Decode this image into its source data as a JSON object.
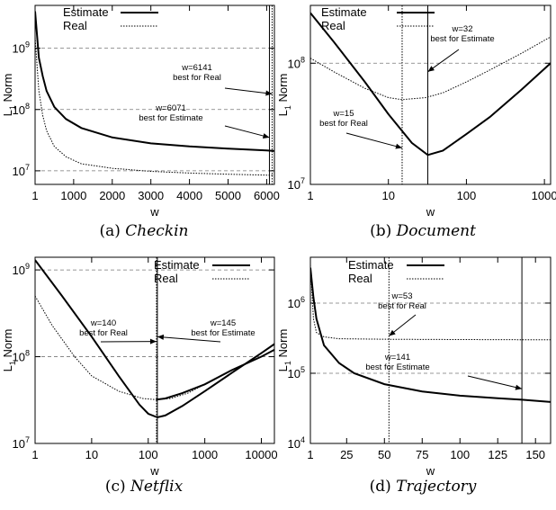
{
  "panels": [
    {
      "caption_label": "(a)",
      "caption_name": "Checkin",
      "chart_data": {
        "type": "line",
        "xlabel": "w",
        "ylabel": "L1 Norm",
        "ylabel_main": "L",
        "ylabel_sub": "1",
        "ylabel_rest": " Norm",
        "xscale": "linear",
        "yscale": "log",
        "xlim": [
          1,
          6200
        ],
        "ylim": [
          6000000,
          5000000000
        ],
        "xticks": [
          1,
          1000,
          2000,
          3000,
          4000,
          5000,
          6000
        ],
        "xtick_labels": [
          "1",
          "1000",
          "2000",
          "3000",
          "4000",
          "5000",
          "6000"
        ],
        "yticks": [
          10000000,
          100000000,
          1000000000
        ],
        "ytick_labels_base": [
          "10",
          "10",
          "10"
        ],
        "ytick_labels_exp": [
          "7",
          "8",
          "9"
        ],
        "gridlines_y": [
          10000000,
          100000000,
          1000000000
        ],
        "legend": {
          "position": "top-left",
          "entries": [
            "Estimate",
            "Real"
          ]
        },
        "series": [
          {
            "name": "Estimate",
            "style": "solid",
            "x": [
              1,
              100,
              200,
              300,
              500,
              800,
              1200,
              2000,
              3000,
              4000,
              5000,
              6000,
              6200
            ],
            "y": [
              4000000000,
              700000000,
              350000000,
              200000000,
              110000000,
              70000000,
              50000000,
              35000000,
              28000000,
              25000000,
              23000000,
              21500000,
              21000000
            ]
          },
          {
            "name": "Real",
            "style": "dotted",
            "x": [
              1,
              100,
              200,
              300,
              500,
              800,
              1200,
              2000,
              3000,
              4000,
              5000,
              6000,
              6200
            ],
            "y": [
              1500000000,
              200000000,
              80000000,
              45000000,
              25000000,
              17000000,
              13000000,
              11000000,
              9800000,
              9200000,
              8800000,
              8500000,
              8400000
            ]
          }
        ],
        "vlines": [
          {
            "x": 6071,
            "style": "solid"
          },
          {
            "x": 6141,
            "style": "dotted"
          }
        ],
        "annotations": [
          {
            "lines": [
              "w=6141",
              "best for Real"
            ],
            "target_x": 6141,
            "target_y": 180000000
          },
          {
            "lines": [
              "w=6071",
              "best for Estimate"
            ],
            "target_x": 6071,
            "target_y": 35000000
          }
        ]
      }
    },
    {
      "caption_label": "(b)",
      "caption_name": "Document",
      "chart_data": {
        "type": "line",
        "xlabel": "w",
        "ylabel": "L1 Norm",
        "ylabel_main": "L",
        "ylabel_sub": "1",
        "ylabel_rest": " Norm",
        "xscale": "log",
        "yscale": "log",
        "xlim": [
          1,
          1200
        ],
        "ylim": [
          10000000,
          300000000
        ],
        "xticks": [
          1,
          10,
          100,
          1000
        ],
        "xtick_labels": [
          "1",
          "10",
          "100",
          "1000"
        ],
        "yticks": [
          10000000,
          100000000
        ],
        "ytick_labels_base": [
          "10",
          "10"
        ],
        "ytick_labels_exp": [
          "7",
          "8"
        ],
        "gridlines_y": [
          10000000,
          100000000
        ],
        "legend": {
          "position": "top-left",
          "entries": [
            "Estimate",
            "Real"
          ]
        },
        "series": [
          {
            "name": "Estimate",
            "style": "solid",
            "x": [
              1,
              2,
              5,
              10,
              20,
              32,
              50,
              100,
              200,
              500,
              1200
            ],
            "y": [
              260000000,
              150000000,
              70000000,
              38000000,
              22000000,
              17500000,
              19000000,
              26000000,
              36000000,
              60000000,
              100000000
            ]
          },
          {
            "name": "Real",
            "style": "dotted",
            "x": [
              1,
              2,
              5,
              10,
              15,
              30,
              50,
              100,
              200,
              500,
              1200
            ],
            "y": [
              110000000,
              85000000,
              62000000,
              52000000,
              50000000,
              52000000,
              57000000,
              70000000,
              88000000,
              120000000,
              165000000
            ]
          }
        ],
        "vlines": [
          {
            "x": 32,
            "style": "solid"
          },
          {
            "x": 15,
            "style": "dotted"
          }
        ],
        "annotations": [
          {
            "lines": [
              "w=32",
              "best for Estimate"
            ],
            "target_x": 32,
            "target_y": 85000000
          },
          {
            "lines": [
              "w=15",
              "best for Real"
            ],
            "target_x": 15,
            "target_y": 20000000
          }
        ]
      }
    },
    {
      "caption_label": "(c)",
      "caption_name": "Netflix",
      "chart_data": {
        "type": "line",
        "xlabel": "w",
        "ylabel": "L1 Norm",
        "ylabel_main": "L",
        "ylabel_sub": "1",
        "ylabel_rest": " Norm",
        "xscale": "log",
        "yscale": "log",
        "xlim": [
          1,
          17000
        ],
        "ylim": [
          10000000,
          1400000000
        ],
        "xticks": [
          1,
          10,
          100,
          1000,
          10000
        ],
        "xtick_labels": [
          "1",
          "10",
          "100",
          "1000",
          "10000"
        ],
        "yticks": [
          10000000,
          100000000,
          1000000000
        ],
        "ytick_labels_base": [
          "10",
          "10",
          "10"
        ],
        "ytick_labels_exp": [
          "7",
          "8",
          "9"
        ],
        "gridlines_y": [
          100000000,
          1000000000
        ],
        "legend": {
          "position": "top-right",
          "entries": [
            "Estimate",
            "Real"
          ]
        },
        "series": [
          {
            "name": "Estimate",
            "style": "solid",
            "x": [
              1,
              3,
              10,
              30,
              70,
              100,
              145,
              200,
              400,
              1000,
              3000,
              10000,
              17000
            ],
            "y": [
              1300000000,
              500000000,
              170000000,
              60000000,
              28000000,
              22000000,
              20000000,
              21000000,
              27000000,
              40000000,
              65000000,
              110000000,
              140000000
            ]
          },
          {
            "name": "Estimate",
            "style": "solid",
            "x": [
              140,
              200,
              400,
              1000,
              3000,
              10000,
              17000
            ],
            "y": [
              32000000,
              33000000,
              38000000,
              48000000,
              70000000,
              100000000,
              120000000
            ]
          },
          {
            "name": "Real",
            "style": "dotted",
            "x": [
              1,
              2,
              5,
              10,
              30,
              80,
              140,
              250,
              500,
              1000
            ],
            "y": [
              500000000,
              230000000,
              100000000,
              60000000,
              40000000,
              33000000,
              32000000,
              33000000,
              38000000,
              48000000
            ]
          }
        ],
        "vlines": [
          {
            "x": 145,
            "style": "solid"
          },
          {
            "x": 140,
            "style": "dotted"
          }
        ],
        "annotations": [
          {
            "lines": [
              "w=140",
              "best for Real"
            ],
            "target_x": 140,
            "target_y": 150000000
          },
          {
            "lines": [
              "w=145",
              "best for Estimate"
            ],
            "target_x": 145,
            "target_y": 170000000
          }
        ]
      }
    },
    {
      "caption_label": "(d)",
      "caption_name": "Trajectory",
      "chart_data": {
        "type": "line",
        "xlabel": "w",
        "ylabel": "L1 Norm",
        "ylabel_main": "L",
        "ylabel_sub": "1",
        "ylabel_rest": " Norm",
        "xscale": "linear",
        "yscale": "log",
        "xlim": [
          1,
          160
        ],
        "ylim": [
          10000,
          4500000
        ],
        "xticks": [
          1,
          25,
          50,
          75,
          100,
          125,
          150
        ],
        "xtick_labels": [
          "1",
          "25",
          "50",
          "75",
          "100",
          "125",
          "150"
        ],
        "yticks": [
          10000,
          100000,
          1000000
        ],
        "ytick_labels_base": [
          "10",
          "10",
          "10"
        ],
        "ytick_labels_exp": [
          "4",
          "5",
          "6"
        ],
        "gridlines_y": [
          100000,
          1000000
        ],
        "legend": {
          "position": "top-left",
          "entries": [
            "Estimate",
            "Real"
          ]
        },
        "series": [
          {
            "name": "Estimate",
            "style": "solid",
            "x": [
              1,
              3,
              5,
              10,
              20,
              30,
              50,
              75,
              100,
              125,
              141,
              160
            ],
            "y": [
              3200000,
              1200000,
              600000,
              250000,
              140000,
              100000,
              70000,
              55000,
              48000,
              44000,
              42000,
              39000
            ]
          },
          {
            "name": "Real",
            "style": "dotted",
            "x": [
              1,
              3,
              5,
              10,
              20,
              53,
              100,
              160
            ],
            "y": [
              3500000,
              600000,
              380000,
              330000,
              310000,
              305000,
              302000,
              300000
            ]
          }
        ],
        "vlines": [
          {
            "x": 141,
            "style": "solid"
          },
          {
            "x": 53,
            "style": "dotted"
          }
        ],
        "annotations": [
          {
            "lines": [
              "w=53",
              "best for Real"
            ],
            "target_x": 53,
            "target_y": 340000
          },
          {
            "lines": [
              "w=141",
              "best for Estimate"
            ],
            "target_x": 141,
            "target_y": 60000
          }
        ]
      }
    }
  ]
}
